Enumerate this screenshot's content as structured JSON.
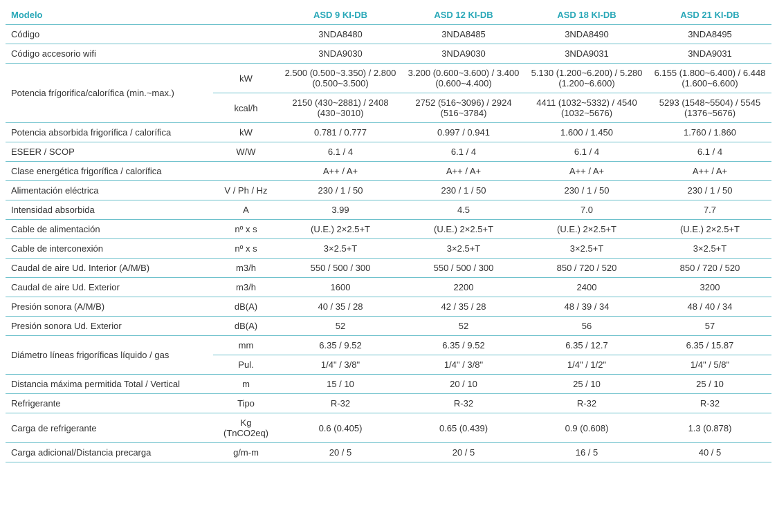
{
  "accent_color": "#2aa8b8",
  "border_color": "#6ec1cc",
  "text_color": "#333333",
  "header": {
    "modelo": "Modelo",
    "models": [
      "ASD 9 KI-DB",
      "ASD 12 KI-DB",
      "ASD 18 KI-DB",
      "ASD 21 KI-DB"
    ]
  },
  "rows": [
    {
      "label": "Código",
      "unit": "",
      "vals": [
        "3NDA8480",
        "3NDA8485",
        "3NDA8490",
        "3NDA8495"
      ]
    },
    {
      "label": "Código accesorio wifi",
      "unit": "",
      "vals": [
        "3NDA9030",
        "3NDA9030",
        "3NDA9031",
        "3NDA9031"
      ]
    },
    {
      "label": "Potencia frígorifica/calorífica (min.~max.)",
      "rowspan": 2,
      "unit": "kW",
      "vals": [
        "2.500 (0.500~3.350) / 2.800 (0.500~3.500)",
        "3.200 (0.600~3.600) / 3.400 (0.600~4.400)",
        "5.130 (1.200~6.200) / 5.280 (1.200~6.600)",
        "6.155 (1.800~6.400) / 6.448 (1.600~6.600)"
      ]
    },
    {
      "unit": "kcal/h",
      "vals": [
        "2150 (430~2881) / 2408 (430~3010)",
        "2752 (516~3096) / 2924 (516~3784)",
        "4411 (1032~5332) / 4540 (1032~5676)",
        "5293 (1548~5504) / 5545 (1376~5676)"
      ]
    },
    {
      "label": "Potencia absorbida frigorífica / calorífica",
      "unit": "kW",
      "vals": [
        "0.781 / 0.777",
        "0.997 / 0.941",
        "1.600 / 1.450",
        "1.760 / 1.860"
      ]
    },
    {
      "label": "ESEER / SCOP",
      "unit": "W/W",
      "vals": [
        "6.1 / 4",
        "6.1 / 4",
        "6.1 / 4",
        "6.1 / 4"
      ]
    },
    {
      "label": "Clase energética frigorífica / calorífica",
      "unit": "",
      "vals": [
        "A++ / A+",
        "A++ / A+",
        "A++ / A+",
        "A++ / A+"
      ]
    },
    {
      "label": "Alimentación eléctrica",
      "unit": "V / Ph / Hz",
      "vals": [
        "230 / 1 / 50",
        "230 / 1 / 50",
        "230 / 1 / 50",
        "230 / 1 / 50"
      ]
    },
    {
      "label": "Intensidad absorbida",
      "unit": "A",
      "vals": [
        "3.99",
        "4.5",
        "7.0",
        "7.7"
      ]
    },
    {
      "label": "Cable de alimentación",
      "unit": "nº x s",
      "vals": [
        "(U.E.) 2×2.5+T",
        "(U.E.) 2×2.5+T",
        "(U.E.) 2×2.5+T",
        "(U.E.) 2×2.5+T"
      ]
    },
    {
      "label": "Cable de interconexión",
      "unit": "nº x s",
      "vals": [
        "3×2.5+T",
        "3×2.5+T",
        "3×2.5+T",
        "3×2.5+T"
      ]
    },
    {
      "label": "Caudal de aire Ud. Interior (A/M/B)",
      "unit": "m3/h",
      "vals": [
        "550 / 500 / 300",
        "550 / 500 / 300",
        "850 / 720 / 520",
        "850 / 720 / 520"
      ]
    },
    {
      "label": "Caudal de aire Ud. Exterior",
      "unit": "m3/h",
      "vals": [
        "1600",
        "2200",
        "2400",
        "3200"
      ]
    },
    {
      "label": "Presión sonora (A/M/B)",
      "unit": "dB(A)",
      "vals": [
        "40 / 35 / 28",
        "42 / 35 / 28",
        "48 / 39 / 34",
        "48 / 40 / 34"
      ]
    },
    {
      "label": "Presión sonora Ud. Exterior",
      "unit": "dB(A)",
      "vals": [
        "52",
        "52",
        "56",
        "57"
      ]
    },
    {
      "label": "Diámetro líneas frigoríficas líquido / gas",
      "rowspan": 2,
      "unit": "mm",
      "vals": [
        "6.35 / 9.52",
        "6.35 / 9.52",
        "6.35 / 12.7",
        "6.35 / 15.87"
      ]
    },
    {
      "unit": "Pul.",
      "vals": [
        "1/4\" / 3/8\"",
        "1/4\" / 3/8\"",
        "1/4\" / 1/2\"",
        "1/4\" / 5/8\""
      ]
    },
    {
      "label": "Distancia máxima permitida Total / Vertical",
      "unit": "m",
      "vals": [
        "15 / 10",
        "20 / 10",
        "25 / 10",
        "25 / 10"
      ]
    },
    {
      "label": "Refrigerante",
      "unit": "Tipo",
      "vals": [
        "R-32",
        "R-32",
        "R-32",
        "R-32"
      ]
    },
    {
      "label": "Carga de refrigerante",
      "unit": "Kg (TnCO2eq)",
      "vals": [
        "0.6 (0.405)",
        "0.65 (0.439)",
        "0.9 (0.608)",
        "1.3 (0.878)"
      ]
    },
    {
      "label": "Carga adicional/Distancia precarga",
      "unit": "g/m-m",
      "vals": [
        "20 / 5",
        "20 / 5",
        "16 / 5",
        "40 / 5"
      ]
    }
  ]
}
